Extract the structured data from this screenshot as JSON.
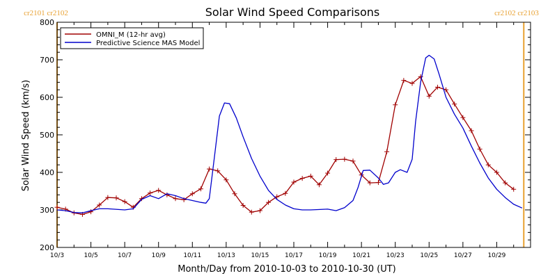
{
  "chart_data": {
    "type": "line",
    "title": "Solar Wind Speed Comparisons",
    "xlabel": "Month/Day from 2010-10-03 to 2010-10-30 (UT)",
    "ylabel": "Solar Wind Speed (km/s)",
    "xlim": [
      "2010-10-03",
      "2010-10-31"
    ],
    "ylim": [
      200,
      800
    ],
    "x_tick_labels": [
      "10/3",
      "10/5",
      "10/7",
      "10/9",
      "10/11",
      "10/13",
      "10/15",
      "10/17",
      "10/19",
      "10/21",
      "10/23",
      "10/25",
      "10/27",
      "10/29"
    ],
    "y_tick_values": [
      200,
      300,
      400,
      500,
      600,
      700,
      800
    ],
    "legend_placement": "top-left",
    "rotation_markers": [
      {
        "date": "2010-10-03",
        "labels": [
          "cr2101",
          "cr2102"
        ],
        "color": "#e8a030"
      },
      {
        "date": "2010-10-30.6",
        "labels": [
          "cr2102",
          "cr2103"
        ],
        "color": "#e8a030"
      }
    ],
    "series": [
      {
        "name": "OMNI_M (12-hr avg)",
        "color": "#a00000",
        "marker": "plus",
        "points": [
          [
            "2010-10-03.0",
            307
          ],
          [
            "2010-10-03.5",
            302
          ],
          [
            "2010-10-04.0",
            292
          ],
          [
            "2010-10-04.5",
            288
          ],
          [
            "2010-10-05.0",
            295
          ],
          [
            "2010-10-05.5",
            313
          ],
          [
            "2010-10-06.0",
            333
          ],
          [
            "2010-10-06.5",
            332
          ],
          [
            "2010-10-07.0",
            322
          ],
          [
            "2010-10-07.5",
            307
          ],
          [
            "2010-10-08.0",
            330
          ],
          [
            "2010-10-08.5",
            345
          ],
          [
            "2010-10-09.0",
            352
          ],
          [
            "2010-10-09.5",
            340
          ],
          [
            "2010-10-10.0",
            330
          ],
          [
            "2010-10-10.5",
            327
          ],
          [
            "2010-10-11.0",
            343
          ],
          [
            "2010-10-11.5",
            356
          ],
          [
            "2010-10-12.0",
            409
          ],
          [
            "2010-10-12.5",
            404
          ],
          [
            "2010-10-13.0",
            380
          ],
          [
            "2010-10-13.5",
            343
          ],
          [
            "2010-10-14.0",
            312
          ],
          [
            "2010-10-14.5",
            294
          ],
          [
            "2010-10-15.0",
            298
          ],
          [
            "2010-10-15.5",
            320
          ],
          [
            "2010-10-16.0",
            335
          ],
          [
            "2010-10-16.5",
            344
          ],
          [
            "2010-10-17.0",
            374
          ],
          [
            "2010-10-17.5",
            384
          ],
          [
            "2010-10-18.0",
            390
          ],
          [
            "2010-10-18.5",
            367
          ],
          [
            "2010-10-19.0",
            398
          ],
          [
            "2010-10-19.5",
            434
          ],
          [
            "2010-10-20.0",
            435
          ],
          [
            "2010-10-20.5",
            430
          ],
          [
            "2010-10-21.0",
            393
          ],
          [
            "2010-10-21.5",
            372
          ],
          [
            "2010-10-22.0",
            373
          ],
          [
            "2010-10-22.5",
            455
          ],
          [
            "2010-10-23.0",
            580
          ],
          [
            "2010-10-23.5",
            645
          ],
          [
            "2010-10-24.0",
            637
          ],
          [
            "2010-10-24.5",
            655
          ],
          [
            "2010-10-25.0",
            603
          ],
          [
            "2010-10-25.5",
            627
          ],
          [
            "2010-10-26.0",
            620
          ],
          [
            "2010-10-26.5",
            582
          ],
          [
            "2010-10-27.0",
            546
          ],
          [
            "2010-10-27.5",
            511
          ],
          [
            "2010-10-28.0",
            462
          ],
          [
            "2010-10-28.5",
            420
          ],
          [
            "2010-10-29.0",
            400
          ],
          [
            "2010-10-29.5",
            372
          ],
          [
            "2010-10-30.0",
            355
          ]
        ]
      },
      {
        "name": "Predictive Science MAS Model",
        "color": "#0000cc",
        "marker": "none",
        "points": [
          [
            "2010-10-03.0",
            300
          ],
          [
            "2010-10-03.5",
            298
          ],
          [
            "2010-10-04.0",
            293
          ],
          [
            "2010-10-04.5",
            292
          ],
          [
            "2010-10-05.0",
            298
          ],
          [
            "2010-10-05.5",
            303
          ],
          [
            "2010-10-06.0",
            303
          ],
          [
            "2010-10-07.0",
            300
          ],
          [
            "2010-10-07.5",
            303
          ],
          [
            "2010-10-08.0",
            328
          ],
          [
            "2010-10-08.5",
            338
          ],
          [
            "2010-10-09.0",
            330
          ],
          [
            "2010-10-09.5",
            343
          ],
          [
            "2010-10-10.0",
            338
          ],
          [
            "2010-10-10.5",
            330
          ],
          [
            "2010-10-11.0",
            325
          ],
          [
            "2010-10-11.5",
            320
          ],
          [
            "2010-10-11.8",
            318
          ],
          [
            "2010-10-12.0",
            330
          ],
          [
            "2010-10-12.3",
            440
          ],
          [
            "2010-10-12.6",
            550
          ],
          [
            "2010-10-12.9",
            585
          ],
          [
            "2010-10-13.2",
            583
          ],
          [
            "2010-10-13.6",
            545
          ],
          [
            "2010-10-14.0",
            495
          ],
          [
            "2010-10-14.5",
            437
          ],
          [
            "2010-10-15.0",
            390
          ],
          [
            "2010-10-15.5",
            352
          ],
          [
            "2010-10-16.0",
            328
          ],
          [
            "2010-10-16.5",
            313
          ],
          [
            "2010-10-17.0",
            303
          ],
          [
            "2010-10-17.5",
            300
          ],
          [
            "2010-10-18.0",
            300
          ],
          [
            "2010-10-19.0",
            302
          ],
          [
            "2010-10-19.5",
            298
          ],
          [
            "2010-10-20.0",
            306
          ],
          [
            "2010-10-20.5",
            325
          ],
          [
            "2010-10-20.8",
            360
          ],
          [
            "2010-10-21.1",
            405
          ],
          [
            "2010-10-21.5",
            406
          ],
          [
            "2010-10-22.0",
            385
          ],
          [
            "2010-10-22.3",
            368
          ],
          [
            "2010-10-22.6",
            372
          ],
          [
            "2010-10-23.0",
            400
          ],
          [
            "2010-10-23.3",
            407
          ],
          [
            "2010-10-23.7",
            400
          ],
          [
            "2010-10-24.0",
            435
          ],
          [
            "2010-10-24.2",
            535
          ],
          [
            "2010-10-24.5",
            640
          ],
          [
            "2010-10-24.8",
            705
          ],
          [
            "2010-10-25.0",
            712
          ],
          [
            "2010-10-25.3",
            702
          ],
          [
            "2010-10-25.6",
            660
          ],
          [
            "2010-10-26.0",
            600
          ],
          [
            "2010-10-26.5",
            555
          ],
          [
            "2010-10-27.0",
            518
          ],
          [
            "2010-10-27.5",
            470
          ],
          [
            "2010-10-28.0",
            425
          ],
          [
            "2010-10-28.5",
            385
          ],
          [
            "2010-10-29.0",
            355
          ],
          [
            "2010-10-29.5",
            333
          ],
          [
            "2010-10-30.0",
            315
          ],
          [
            "2010-10-30.5",
            305
          ]
        ]
      }
    ]
  }
}
